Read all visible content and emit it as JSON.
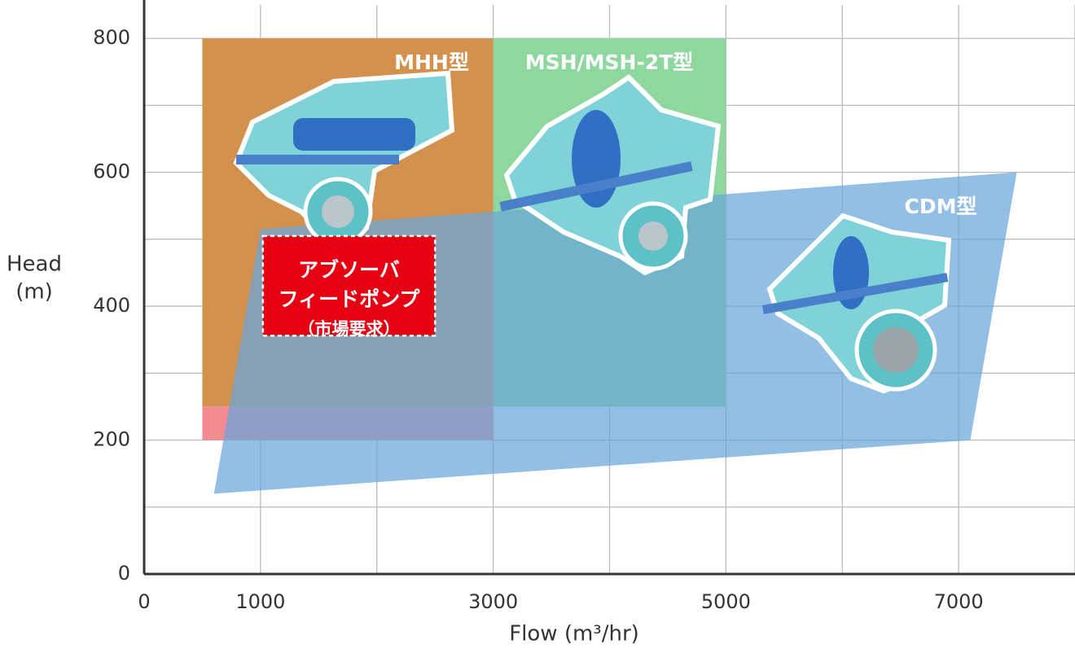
{
  "chart_data": {
    "type": "region",
    "x_label": "Flow (m³/hr)",
    "y_label": [
      "Head",
      "(m)"
    ],
    "xlim": [
      0,
      8000
    ],
    "ylim": [
      0,
      850
    ],
    "xticks": [
      0,
      1000,
      3000,
      5000,
      7000
    ],
    "yticks": [
      0,
      200,
      400,
      600,
      800
    ],
    "xgrid": [
      1000,
      2000,
      3000,
      4000,
      5000,
      6000,
      7000,
      8000
    ],
    "ygrid": [
      100,
      200,
      300,
      400,
      500,
      600,
      700,
      800
    ],
    "regions": [
      {
        "name": "MHH型",
        "color": "#d4914e",
        "points": [
          [
            500,
            250
          ],
          [
            3000,
            250
          ],
          [
            3000,
            800
          ],
          [
            500,
            800
          ]
        ]
      },
      {
        "color": "#f28a92",
        "points": [
          [
            500,
            200
          ],
          [
            3000,
            200
          ],
          [
            3000,
            250
          ],
          [
            500,
            250
          ]
        ]
      },
      {
        "name": "MSH/MSH-2T型",
        "color": "#8ed79f",
        "points": [
          [
            3000,
            250
          ],
          [
            5000,
            250
          ],
          [
            5000,
            800
          ],
          [
            3000,
            800
          ]
        ]
      },
      {
        "name": "CDM型",
        "color": "#6aa6db",
        "points": [
          [
            600,
            120
          ],
          [
            1000,
            515
          ],
          [
            7500,
            600
          ],
          [
            7100,
            200
          ]
        ]
      }
    ],
    "annotations": [
      {
        "text": [
          "アブソーバ",
          "フィードポンプ",
          "（市場要求）"
        ],
        "color": "#e60012",
        "x": [
          1000,
          2500
        ],
        "y": [
          300,
          500
        ]
      }
    ]
  }
}
